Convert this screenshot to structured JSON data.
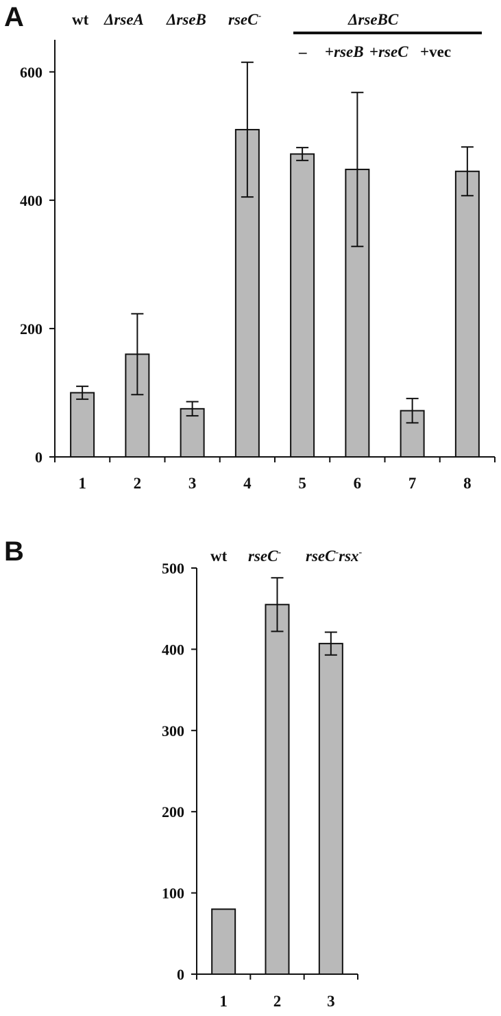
{
  "chart_data": [
    {
      "panel": "A",
      "type": "bar",
      "categories": [
        "1",
        "2",
        "3",
        "4",
        "5",
        "6",
        "7",
        "8"
      ],
      "values": [
        100,
        160,
        75,
        510,
        472,
        448,
        72,
        445
      ],
      "errors": [
        10,
        63,
        11,
        105,
        10,
        120,
        19,
        38
      ],
      "yticks": [
        0,
        200,
        400,
        600
      ],
      "ylim": [
        0,
        650
      ],
      "group_labels": {
        "wt": "wt",
        "rseA": "ΔrseA",
        "rseB": "ΔrseB",
        "rseC_base": "rseC",
        "rseC_sup": "-",
        "rseBC": "ΔrseBC",
        "minus": "–",
        "plus_rseB": "+rseB",
        "plus_rseC": "+rseC",
        "plus_vec": "+vec"
      },
      "grid": false
    },
    {
      "panel": "B",
      "type": "bar",
      "categories": [
        "1",
        "2",
        "3"
      ],
      "values": [
        80,
        455,
        407
      ],
      "errors": [
        0,
        33,
        14
      ],
      "yticks": [
        0,
        100,
        200,
        300,
        400,
        500
      ],
      "ylim": [
        0,
        500
      ],
      "group_labels": {
        "wt": "wt",
        "rseC_base": "rseC",
        "rseC_sup": "-",
        "rsx_base": "rsx",
        "rsx_sup": "-"
      },
      "grid": false
    }
  ]
}
